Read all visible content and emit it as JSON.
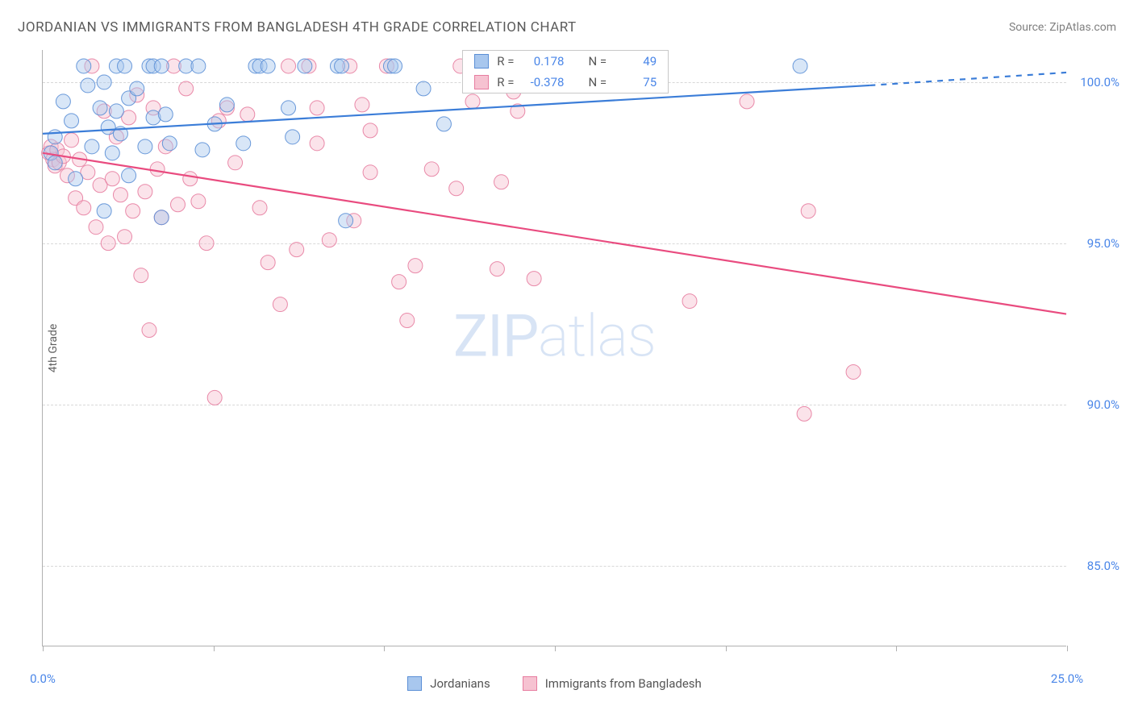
{
  "header": {
    "title": "JORDANIAN VS IMMIGRANTS FROM BANGLADESH 4TH GRADE CORRELATION CHART",
    "source": "Source: ZipAtlas.com"
  },
  "watermark": {
    "part1": "ZIP",
    "part2": "atlas"
  },
  "chart": {
    "type": "scatter",
    "y_axis_label": "4th Grade",
    "xlim": [
      0,
      25
    ],
    "ylim": [
      82.5,
      101.0
    ],
    "x_ticks": [
      0,
      4.17,
      8.33,
      12.5,
      16.67,
      20.83,
      25
    ],
    "x_tick_labels": {
      "0": "0.0%",
      "25": "25.0%"
    },
    "y_gridlines": [
      85,
      90,
      95,
      100
    ],
    "y_tick_labels": {
      "85": "85.0%",
      "90": "90.0%",
      "95": "95.0%",
      "100": "100.0%"
    },
    "background_color": "#ffffff",
    "grid_color": "#d8d8d8",
    "axis_color": "#b0b0b0",
    "tick_label_color": "#4a86e8",
    "marker_radius": 9,
    "marker_opacity": 0.45,
    "marker_stroke_width": 1,
    "trend_line_width": 2.2
  },
  "series": {
    "a": {
      "label": "Jordanians",
      "fill_color": "#a8c7ee",
      "stroke_color": "#5b8fd6",
      "line_color": "#3b7dd8",
      "R": "0.178",
      "N": "49",
      "trend": {
        "x1": 0,
        "y1": 98.4,
        "x2": 20.2,
        "y2": 99.9,
        "x2_dash": 25,
        "y2_dash": 100.3
      },
      "data": [
        [
          0.2,
          97.8
        ],
        [
          0.3,
          98.3
        ],
        [
          0.3,
          97.5
        ],
        [
          0.5,
          99.4
        ],
        [
          0.7,
          98.8
        ],
        [
          0.8,
          97.0
        ],
        [
          1.0,
          100.5
        ],
        [
          1.1,
          99.9
        ],
        [
          1.2,
          98.0
        ],
        [
          1.4,
          99.2
        ],
        [
          1.5,
          100.0
        ],
        [
          1.6,
          98.6
        ],
        [
          1.7,
          97.8
        ],
        [
          1.8,
          100.5
        ],
        [
          1.8,
          99.1
        ],
        [
          1.9,
          98.4
        ],
        [
          2.0,
          100.5
        ],
        [
          2.1,
          99.5
        ],
        [
          2.1,
          97.1
        ],
        [
          2.3,
          99.8
        ],
        [
          2.5,
          98.0
        ],
        [
          2.6,
          100.5
        ],
        [
          2.7,
          100.5
        ],
        [
          2.7,
          98.9
        ],
        [
          2.9,
          100.5
        ],
        [
          3.0,
          99.0
        ],
        [
          3.1,
          98.1
        ],
        [
          3.5,
          100.5
        ],
        [
          3.8,
          100.5
        ],
        [
          3.9,
          97.9
        ],
        [
          4.2,
          98.7
        ],
        [
          4.5,
          99.3
        ],
        [
          4.9,
          98.1
        ],
        [
          5.2,
          100.5
        ],
        [
          5.3,
          100.5
        ],
        [
          5.5,
          100.5
        ],
        [
          6.0,
          99.2
        ],
        [
          6.1,
          98.3
        ],
        [
          6.4,
          100.5
        ],
        [
          7.2,
          100.5
        ],
        [
          7.3,
          100.5
        ],
        [
          7.4,
          95.7
        ],
        [
          8.5,
          100.5
        ],
        [
          8.6,
          100.5
        ],
        [
          9.3,
          99.8
        ],
        [
          9.8,
          98.7
        ],
        [
          1.5,
          96.0
        ],
        [
          2.9,
          95.8
        ],
        [
          18.5,
          100.5
        ]
      ]
    },
    "b": {
      "label": "Immigrants from Bangladesh",
      "fill_color": "#f6c2d1",
      "stroke_color": "#e77da0",
      "line_color": "#e94b7f",
      "R": "-0.378",
      "N": "75",
      "trend": {
        "x1": 0,
        "y1": 97.8,
        "x2": 25,
        "y2": 92.8
      },
      "data": [
        [
          0.15,
          97.8
        ],
        [
          0.2,
          98.0
        ],
        [
          0.25,
          97.6
        ],
        [
          0.3,
          97.4
        ],
        [
          0.35,
          97.9
        ],
        [
          0.4,
          97.5
        ],
        [
          0.5,
          97.7
        ],
        [
          0.6,
          97.1
        ],
        [
          0.7,
          98.2
        ],
        [
          0.8,
          96.4
        ],
        [
          0.9,
          97.6
        ],
        [
          1.0,
          96.1
        ],
        [
          1.1,
          97.2
        ],
        [
          1.2,
          100.5
        ],
        [
          1.3,
          95.5
        ],
        [
          1.4,
          96.8
        ],
        [
          1.5,
          99.1
        ],
        [
          1.6,
          95.0
        ],
        [
          1.7,
          97.0
        ],
        [
          1.8,
          98.3
        ],
        [
          1.9,
          96.5
        ],
        [
          2.0,
          95.2
        ],
        [
          2.1,
          98.9
        ],
        [
          2.2,
          96.0
        ],
        [
          2.3,
          99.6
        ],
        [
          2.4,
          94.0
        ],
        [
          2.5,
          96.6
        ],
        [
          2.6,
          92.3
        ],
        [
          2.7,
          99.2
        ],
        [
          2.8,
          97.3
        ],
        [
          2.9,
          95.8
        ],
        [
          3.0,
          98.0
        ],
        [
          3.2,
          100.5
        ],
        [
          3.3,
          96.2
        ],
        [
          3.5,
          99.8
        ],
        [
          3.6,
          97.0
        ],
        [
          3.8,
          96.3
        ],
        [
          4.0,
          95.0
        ],
        [
          4.2,
          90.2
        ],
        [
          4.3,
          98.8
        ],
        [
          4.5,
          99.2
        ],
        [
          4.7,
          97.5
        ],
        [
          5.0,
          99.0
        ],
        [
          5.3,
          96.1
        ],
        [
          5.5,
          94.4
        ],
        [
          5.8,
          93.1
        ],
        [
          6.0,
          100.5
        ],
        [
          6.2,
          94.8
        ],
        [
          6.5,
          100.5
        ],
        [
          6.7,
          99.2
        ],
        [
          6.7,
          98.1
        ],
        [
          7.0,
          95.1
        ],
        [
          7.5,
          100.5
        ],
        [
          7.6,
          95.7
        ],
        [
          7.8,
          99.3
        ],
        [
          8.0,
          98.5
        ],
        [
          8.0,
          97.2
        ],
        [
          8.4,
          100.5
        ],
        [
          8.7,
          93.8
        ],
        [
          8.9,
          92.6
        ],
        [
          9.1,
          94.3
        ],
        [
          9.5,
          97.3
        ],
        [
          10.1,
          96.7
        ],
        [
          10.2,
          100.5
        ],
        [
          10.5,
          99.4
        ],
        [
          11.1,
          94.2
        ],
        [
          11.2,
          96.9
        ],
        [
          11.5,
          99.7
        ],
        [
          11.6,
          99.1
        ],
        [
          12.0,
          93.9
        ],
        [
          15.8,
          93.2
        ],
        [
          17.2,
          99.4
        ],
        [
          18.6,
          89.7
        ],
        [
          18.7,
          96.0
        ],
        [
          19.8,
          91.0
        ]
      ]
    }
  },
  "legend_labels": {
    "R": "R =",
    "N": "N ="
  }
}
